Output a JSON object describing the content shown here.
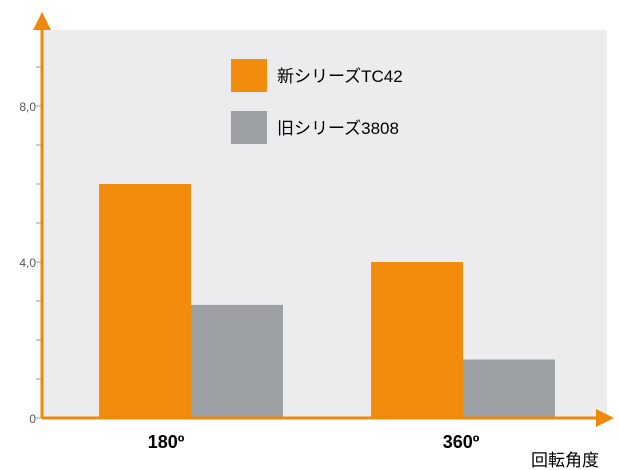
{
  "chart_data": {
    "type": "bar",
    "categories": [
      "180º",
      "360º"
    ],
    "series": [
      {
        "name": "新シリーズTC42",
        "values": [
          6.0,
          4.0
        ]
      },
      {
        "name": "旧シリーズ3808",
        "values": [
          2.9,
          1.5
        ]
      }
    ],
    "yticks": [
      "0",
      "4,0",
      "8,0"
    ],
    "ytick_values": [
      0,
      4,
      8
    ],
    "ylim": [
      0,
      10
    ],
    "minor_ytick_step": 1,
    "xlabel": "回転角度",
    "ylabel": "",
    "title": "",
    "grid": false,
    "legend_position": "top-center"
  },
  "colors": {
    "plot_background": "#ececef",
    "axis": "#f0880a",
    "series": [
      "#f28c0c",
      "#9c9fa3"
    ],
    "tick_text": "#555555",
    "category_text": "#000000"
  }
}
